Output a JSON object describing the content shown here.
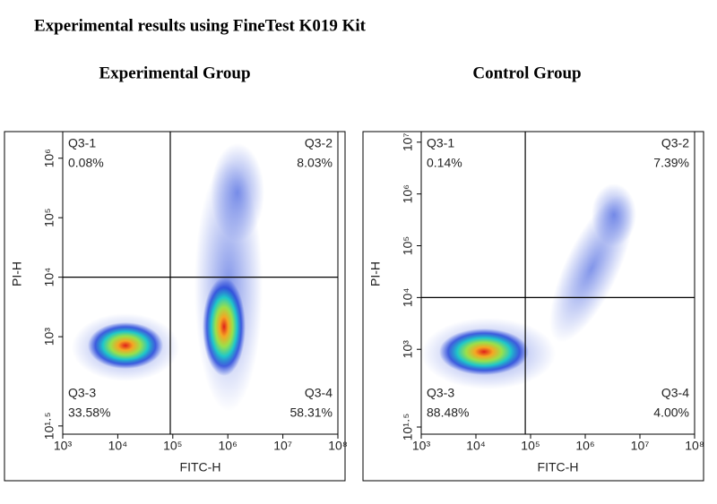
{
  "title": "Experimental results using FineTest K019 Kit",
  "chart_data": [
    {
      "type": "scatter",
      "title": "Experimental Group",
      "x_label": "FITC-H",
      "y_label": "PI-H",
      "log_scale": true,
      "xlim": [
        1000,
        100000000
      ],
      "xticks": [
        {
          "value": 1000,
          "label": "10³"
        },
        {
          "value": 10000,
          "label": "10⁴"
        },
        {
          "value": 100000,
          "label": "10⁵"
        },
        {
          "value": 1000000,
          "label": "10⁶"
        },
        {
          "value": 10000000,
          "label": "10⁷"
        },
        {
          "value": 100000000,
          "label": "10⁸"
        }
      ],
      "ylim": [
        23,
        2800000
      ],
      "yticks": [
        {
          "value": 31.6,
          "label": "10¹·⁵"
        },
        {
          "value": 1000,
          "label": "10³"
        },
        {
          "value": 10000,
          "label": "10⁴"
        },
        {
          "value": 100000,
          "label": "10⁵"
        },
        {
          "value": 1000000,
          "label": "10⁶"
        }
      ],
      "gates": {
        "x": 90000,
        "y": 10000
      },
      "quadrants": {
        "names": [
          "Q3-1",
          "Q3-2",
          "Q3-3",
          "Q3-4"
        ],
        "values": [
          0.08,
          8.03,
          33.58,
          58.31
        ],
        "value_labels": [
          "0.08%",
          "8.03%",
          "33.58%",
          "58.31%"
        ]
      }
    },
    {
      "type": "scatter",
      "title": "Control Group",
      "x_label": "FITC-H",
      "y_label": "PI-H",
      "log_scale": true,
      "xlim": [
        1000,
        100000000
      ],
      "xticks": [
        {
          "value": 1000,
          "label": "10³"
        },
        {
          "value": 10000,
          "label": "10⁴"
        },
        {
          "value": 100000,
          "label": "10⁵"
        },
        {
          "value": 1000000,
          "label": "10⁶"
        },
        {
          "value": 10000000,
          "label": "10⁷"
        },
        {
          "value": 100000000,
          "label": "10⁸"
        }
      ],
      "ylim": [
        23,
        16000000
      ],
      "yticks": [
        {
          "value": 31.6,
          "label": "10¹·⁵"
        },
        {
          "value": 1000,
          "label": "10³"
        },
        {
          "value": 10000,
          "label": "10⁴"
        },
        {
          "value": 100000,
          "label": "10⁵"
        },
        {
          "value": 1000000,
          "label": "10⁶"
        },
        {
          "value": 10000000,
          "label": "10⁷"
        }
      ],
      "gates": {
        "x": 80000,
        "y": 10000
      },
      "quadrants": {
        "names": [
          "Q3-1",
          "Q3-2",
          "Q3-3",
          "Q3-4"
        ],
        "values": [
          0.14,
          7.39,
          88.48,
          4.0
        ],
        "value_labels": [
          "0.14%",
          "7.39%",
          "88.48%",
          "4.00%"
        ]
      }
    }
  ]
}
